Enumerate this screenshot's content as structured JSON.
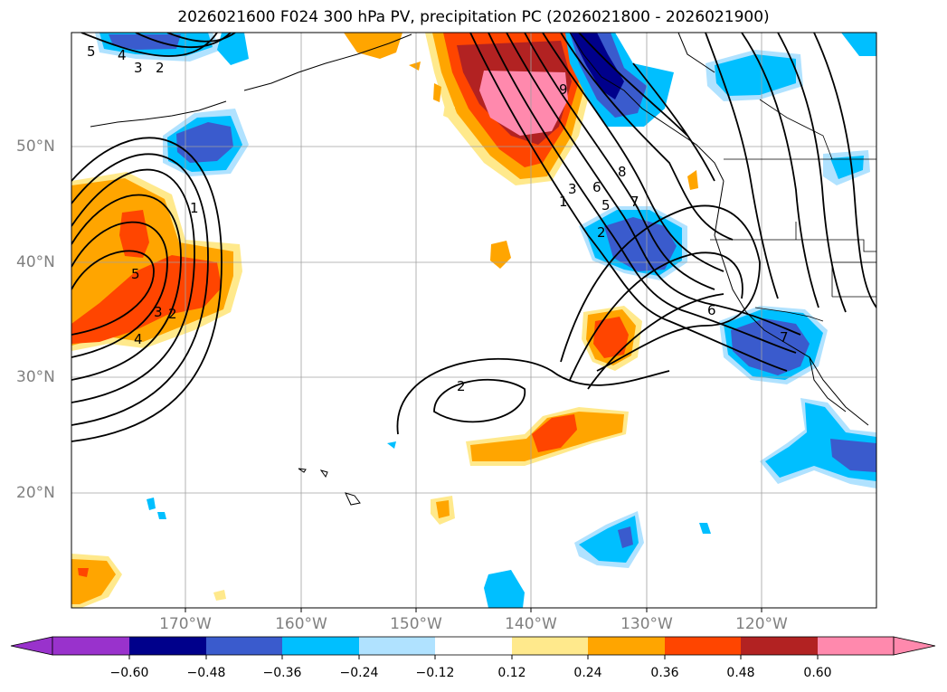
{
  "title": "2026021600 F024 300 hPa PV, precipitation PC (2026021800 - 2026021900)",
  "map": {
    "lat_labels": [
      "50°N",
      "40°N",
      "30°N",
      "20°N"
    ],
    "lon_labels": [
      "170°W",
      "160°W",
      "150°W",
      "140°W",
      "130°W",
      "120°W"
    ],
    "contour_labels": [
      "5",
      "4",
      "3",
      "2",
      "1",
      "5",
      "3",
      "2",
      "4",
      "9",
      "8",
      "6",
      "5",
      "1",
      "3",
      "2",
      "7",
      "6",
      "7",
      "2"
    ]
  },
  "colorbar": {
    "ticks": [
      "−0.60",
      "−0.48",
      "−0.36",
      "−0.24",
      "−0.12",
      "0.12",
      "0.24",
      "0.36",
      "0.48",
      "0.60"
    ],
    "colors": [
      "#9932cc",
      "#00008b",
      "#3a5bcd",
      "#00bfff",
      "#b0e2ff",
      "#ffffff",
      "#ffe98c",
      "#ffa500",
      "#ff4500",
      "#b22222",
      "#ff89ad"
    ]
  },
  "colors": {
    "purple": "#9932cc",
    "navy": "#00008b",
    "royal": "#3a5bcd",
    "sky": "#00bfff",
    "light_blue": "#b0e2ff",
    "light_yellow": "#ffe98c",
    "orange": "#ffa500",
    "red_orange": "#ff4500",
    "firebrick": "#b22222",
    "pink": "#ff89ad"
  }
}
